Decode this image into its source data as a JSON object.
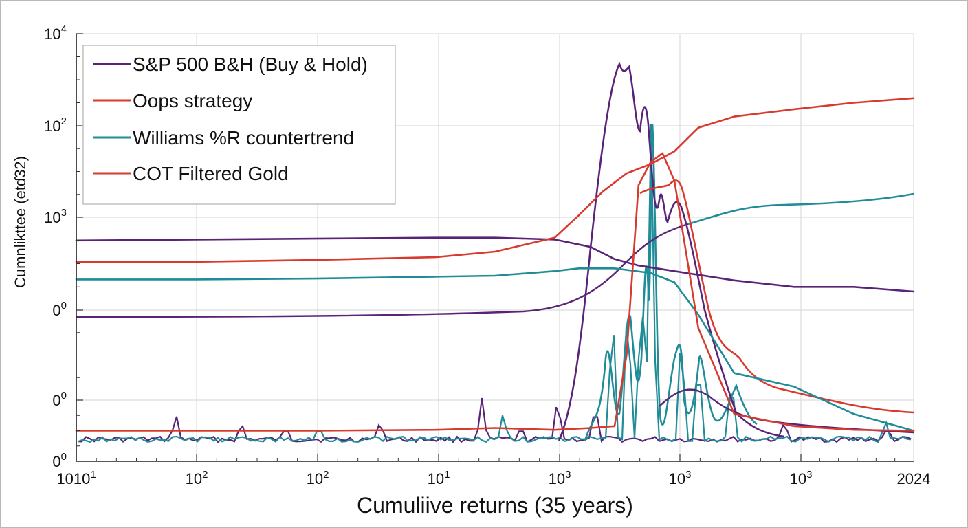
{
  "chart_data": {
    "type": "line",
    "title": "",
    "xlabel": "Cumuliive returns (35 years)",
    "ylabel": "Cumnlikttee (etɗ32)",
    "grid": true,
    "legend_placement": "top-left",
    "x_tick_labels": [
      {
        "base": "10",
        "exp": "1",
        "prefix": "10"
      },
      {
        "base": "10",
        "exp": "2",
        "prefix": ""
      },
      {
        "base": "10",
        "exp": "2",
        "prefix": ""
      },
      {
        "base": "10",
        "exp": "1",
        "prefix": ""
      },
      {
        "base": "10",
        "exp": "3",
        "prefix": ""
      },
      {
        "base": "10",
        "exp": "3",
        "prefix": ""
      },
      {
        "base": "10",
        "exp": "3",
        "prefix": ""
      },
      {
        "base": "2024",
        "exp": "",
        "prefix": ""
      }
    ],
    "y_tick_labels": [
      {
        "base": "10",
        "exp": "4",
        "level": 4
      },
      {
        "base": "10",
        "exp": "2",
        "level": 3
      },
      {
        "base": "10",
        "exp": "3",
        "level": 2
      },
      {
        "base": "0",
        "exp": "0",
        "level": 1
      },
      {
        "base": "0",
        "exp": "0",
        "level": 0
      },
      {
        "base": "0",
        "exp": "0",
        "level": -0.66
      }
    ],
    "xlim": [
      0,
      7
    ],
    "ylim": [
      -0.66,
      4
    ],
    "series": [
      {
        "name": "S&P 500 B&H (Buy & Hold)",
        "color": "#5b2378",
        "x": [
          0,
          1,
          2,
          3,
          3.5,
          4,
          4.3,
          4.5,
          4.7,
          5,
          5.5,
          6,
          6.5,
          7
        ],
        "y": [
          1.75,
          1.76,
          1.77,
          1.78,
          1.78,
          1.76,
          1.68,
          1.55,
          1.48,
          1.42,
          1.32,
          1.25,
          1.25,
          1.2
        ]
      },
      {
        "name": "Oops strategy",
        "color": "#d83a2e",
        "x": [
          0,
          1,
          2,
          3,
          3.5,
          4,
          4.2,
          4.4,
          4.6,
          4.8,
          5,
          5.2,
          5.5,
          6,
          6.5,
          7
        ],
        "y": [
          1.52,
          1.52,
          1.54,
          1.57,
          1.63,
          1.78,
          2.02,
          2.28,
          2.48,
          2.58,
          2.72,
          2.98,
          3.1,
          3.18,
          3.25,
          3.3
        ]
      },
      {
        "name": "Williams %R countertrend",
        "color": "#1f8c98",
        "x": [
          0,
          1,
          2,
          3,
          3.5,
          4,
          4.2,
          4.5,
          4.8,
          5,
          5.2,
          5.5,
          6,
          6.5,
          7
        ],
        "y": [
          1.33,
          1.33,
          1.34,
          1.36,
          1.37,
          1.42,
          1.45,
          1.45,
          1.4,
          1.3,
          0.95,
          0.3,
          0.15,
          -0.15,
          -0.33
        ]
      },
      {
        "name": "COT Filtered Gold",
        "color": "#d83a2e",
        "x": [
          0,
          1,
          2,
          3,
          3.5,
          4,
          4.3,
          4.5,
          4.6,
          4.7,
          4.8,
          4.9,
          5,
          5.2,
          5.5,
          6,
          6.5,
          7
        ],
        "y": [
          -0.33,
          -0.33,
          -0.33,
          -0.32,
          -0.3,
          -0.32,
          -0.3,
          -0.28,
          0.5,
          2.35,
          2.6,
          2.7,
          2.4,
          0.8,
          -0.15,
          -0.28,
          -0.32,
          -0.33
        ]
      }
    ]
  }
}
